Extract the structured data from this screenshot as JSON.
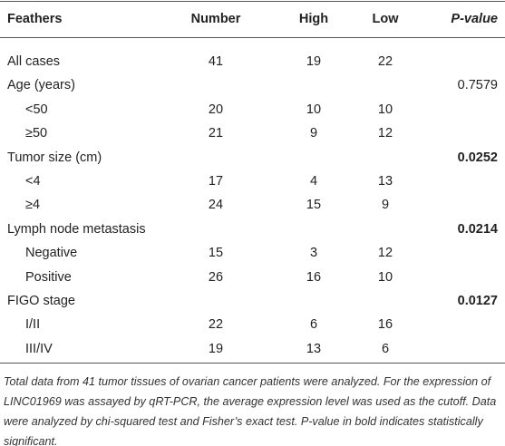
{
  "table": {
    "header": [
      "Feathers",
      "Number",
      "High",
      "Low",
      "P-value"
    ],
    "rows": [
      {
        "cells": [
          "All cases",
          41,
          19,
          22,
          null
        ]
      },
      {
        "cells": [
          "Age (years)",
          null,
          null,
          null,
          0.7579
        ]
      },
      {
        "cells": [
          "<50",
          20,
          10,
          10,
          null
        ],
        "indent": true
      },
      {
        "cells": [
          "≥50",
          21,
          9,
          12,
          null
        ],
        "indent": true
      },
      {
        "cells": [
          "Tumor size (cm)",
          null,
          null,
          null,
          0.0252
        ],
        "bold_p": true
      },
      {
        "cells": [
          "<4",
          17,
          4,
          13,
          null
        ],
        "indent": true
      },
      {
        "cells": [
          "≥4",
          24,
          15,
          9,
          null
        ],
        "indent": true
      },
      {
        "cells": [
          "Lymph node metastasis",
          null,
          null,
          null,
          0.0214
        ],
        "bold_p": true
      },
      {
        "cells": [
          "Negative",
          15,
          3,
          12,
          null
        ],
        "indent": true
      },
      {
        "cells": [
          "Positive",
          26,
          16,
          10,
          null
        ],
        "indent": true
      },
      {
        "cells": [
          "FIGO stage",
          null,
          null,
          null,
          0.0127
        ],
        "bold_p": true
      },
      {
        "cells": [
          "I/II",
          22,
          6,
          16,
          null
        ],
        "indent": true
      },
      {
        "cells": [
          "III/IV",
          19,
          13,
          6,
          null
        ],
        "indent": true
      }
    ],
    "footnote": "Total data from 41 tumor tissues of ovarian cancer patients were analyzed. For the expression of LINC01969 was assayed by qRT-PCR, the average expression level was used as the cutoff. Data were analyzed by chi-squared test and Fisher’s exact test. P-value in bold indicates statistically significant."
  }
}
